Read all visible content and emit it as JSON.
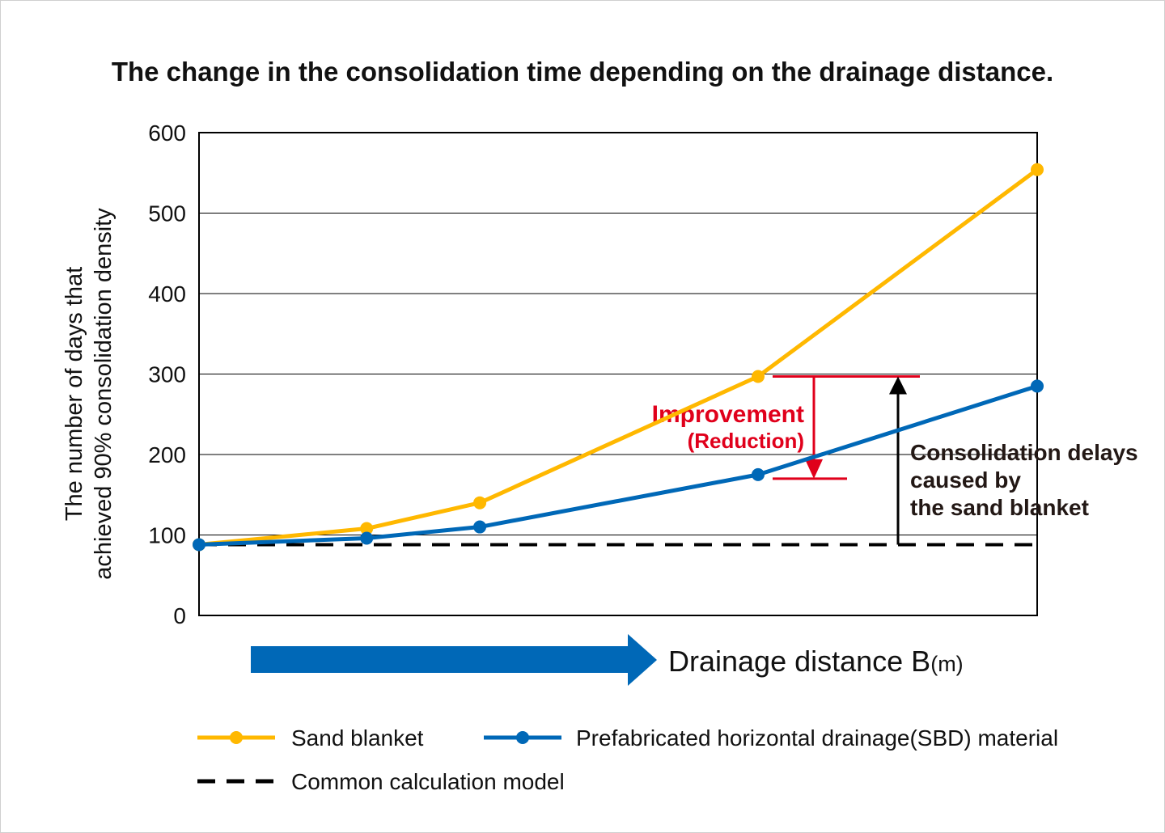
{
  "chart_data": {
    "type": "line",
    "title": "The change in the consolidation time depending on the drainage distance.",
    "ylabel_lines": [
      "The number of days that",
      "achieved 90% consolidation density"
    ],
    "xlabel": "Drainage distance B",
    "xlabel_unit": "(m)",
    "ylim": [
      0,
      600
    ],
    "yticks": [
      0,
      100,
      200,
      300,
      400,
      500,
      600
    ],
    "grid": true,
    "series": [
      {
        "name": "Sand blanket",
        "color": "#ffb800",
        "style": "solid-marker",
        "points": [
          [
            0,
            88
          ],
          [
            0.2,
            108
          ],
          [
            0.335,
            140
          ],
          [
            0.667,
            297
          ],
          [
            1.0,
            554
          ]
        ]
      },
      {
        "name": "Prefabricated horizontal drainage(SBD) material",
        "color": "#0068b7",
        "style": "solid-marker",
        "points": [
          [
            0,
            88
          ],
          [
            0.2,
            96
          ],
          [
            0.335,
            110
          ],
          [
            0.667,
            175
          ],
          [
            1.0,
            285
          ]
        ]
      },
      {
        "name": "Common calculation model",
        "color": "#000000",
        "style": "dashed",
        "points": [
          [
            0,
            88
          ],
          [
            1.0,
            88
          ]
        ]
      }
    ],
    "annotations": {
      "improvement_title": "Improvement",
      "improvement_sub": "(Reduction)",
      "improvement_color": "#e0001b",
      "improvement_range": [
        297,
        170
      ],
      "delay_lines": [
        "Consolidation delays",
        "caused by",
        "the sand blanket"
      ],
      "delay_range": [
        88,
        297
      ]
    },
    "legend": {
      "placement": "bottom"
    }
  }
}
